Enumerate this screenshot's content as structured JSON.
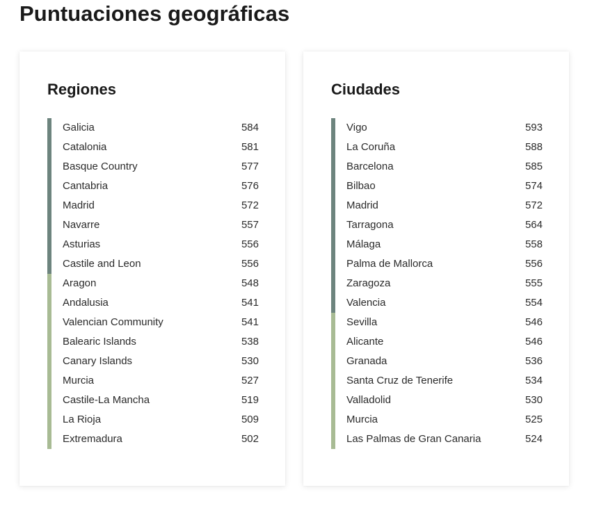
{
  "title": "Puntuaciones geográficas",
  "colors": {
    "high": "#6d847e",
    "low": "#a8bb94"
  },
  "regions": {
    "title": "Regiones",
    "items": [
      {
        "name": "Galicia",
        "score": "584",
        "tier": "high"
      },
      {
        "name": "Catalonia",
        "score": "581",
        "tier": "high"
      },
      {
        "name": "Basque Country",
        "score": "577",
        "tier": "high"
      },
      {
        "name": "Cantabria",
        "score": "576",
        "tier": "high"
      },
      {
        "name": "Madrid",
        "score": "572",
        "tier": "high"
      },
      {
        "name": "Navarre",
        "score": "557",
        "tier": "high"
      },
      {
        "name": "Asturias",
        "score": "556",
        "tier": "high"
      },
      {
        "name": "Castile and Leon",
        "score": "556",
        "tier": "high"
      },
      {
        "name": "Aragon",
        "score": "548",
        "tier": "low"
      },
      {
        "name": "Andalusia",
        "score": "541",
        "tier": "low"
      },
      {
        "name": "Valencian Community",
        "score": "541",
        "tier": "low"
      },
      {
        "name": "Balearic Islands",
        "score": "538",
        "tier": "low"
      },
      {
        "name": "Canary Islands",
        "score": "530",
        "tier": "low"
      },
      {
        "name": "Murcia",
        "score": "527",
        "tier": "low"
      },
      {
        "name": "Castile-La Mancha",
        "score": "519",
        "tier": "low"
      },
      {
        "name": "La Rioja",
        "score": "509",
        "tier": "low"
      },
      {
        "name": "Extremadura",
        "score": "502",
        "tier": "low"
      }
    ]
  },
  "cities": {
    "title": "Ciudades",
    "items": [
      {
        "name": "Vigo",
        "score": "593",
        "tier": "high"
      },
      {
        "name": "La Coruña",
        "score": "588",
        "tier": "high"
      },
      {
        "name": "Barcelona",
        "score": "585",
        "tier": "high"
      },
      {
        "name": "Bilbao",
        "score": "574",
        "tier": "high"
      },
      {
        "name": "Madrid",
        "score": "572",
        "tier": "high"
      },
      {
        "name": "Tarragona",
        "score": "564",
        "tier": "high"
      },
      {
        "name": "Málaga",
        "score": "558",
        "tier": "high"
      },
      {
        "name": "Palma de Mallorca",
        "score": "556",
        "tier": "high"
      },
      {
        "name": "Zaragoza",
        "score": "555",
        "tier": "high"
      },
      {
        "name": "Valencia",
        "score": "554",
        "tier": "high"
      },
      {
        "name": "Sevilla",
        "score": "546",
        "tier": "low"
      },
      {
        "name": "Alicante",
        "score": "546",
        "tier": "low"
      },
      {
        "name": "Granada",
        "score": "536",
        "tier": "low"
      },
      {
        "name": "Santa Cruz de Tenerife",
        "score": "534",
        "tier": "low"
      },
      {
        "name": "Valladolid",
        "score": "530",
        "tier": "low"
      },
      {
        "name": "Murcia",
        "score": "525",
        "tier": "low"
      },
      {
        "name": "Las Palmas de Gran Canaria",
        "score": "524",
        "tier": "low"
      }
    ]
  }
}
